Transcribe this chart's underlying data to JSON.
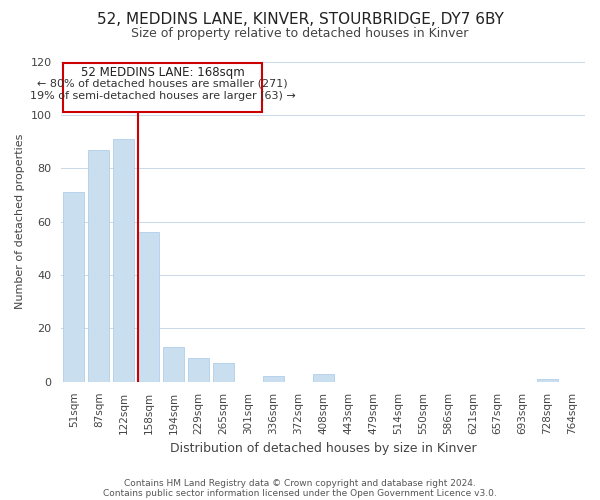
{
  "title": "52, MEDDINS LANE, KINVER, STOURBRIDGE, DY7 6BY",
  "subtitle": "Size of property relative to detached houses in Kinver",
  "xlabel": "Distribution of detached houses by size in Kinver",
  "ylabel": "Number of detached properties",
  "bar_labels": [
    "51sqm",
    "87sqm",
    "122sqm",
    "158sqm",
    "194sqm",
    "229sqm",
    "265sqm",
    "301sqm",
    "336sqm",
    "372sqm",
    "408sqm",
    "443sqm",
    "479sqm",
    "514sqm",
    "550sqm",
    "586sqm",
    "621sqm",
    "657sqm",
    "693sqm",
    "728sqm",
    "764sqm"
  ],
  "bar_values": [
    71,
    87,
    91,
    56,
    13,
    9,
    7,
    0,
    2,
    0,
    3,
    0,
    0,
    0,
    0,
    0,
    0,
    0,
    0,
    1,
    0
  ],
  "bar_color": "#c9dff0",
  "bar_edge_color": "#a8c8e8",
  "marker_line_color": "#cc0000",
  "ylim": [
    0,
    120
  ],
  "yticks": [
    0,
    20,
    40,
    60,
    80,
    100,
    120
  ],
  "annotation_title": "52 MEDDINS LANE: 168sqm",
  "annotation_line1": "← 80% of detached houses are smaller (271)",
  "annotation_line2": "19% of semi-detached houses are larger (63) →",
  "annotation_box_color": "#ffffff",
  "annotation_box_edge": "#cc0000",
  "footer_line1": "Contains HM Land Registry data © Crown copyright and database right 2024.",
  "footer_line2": "Contains public sector information licensed under the Open Government Licence v3.0.",
  "bg_color": "#ffffff",
  "grid_color": "#c8d8e8",
  "title_fontsize": 11,
  "subtitle_fontsize": 9,
  "ylabel_fontsize": 8,
  "xlabel_fontsize": 9
}
